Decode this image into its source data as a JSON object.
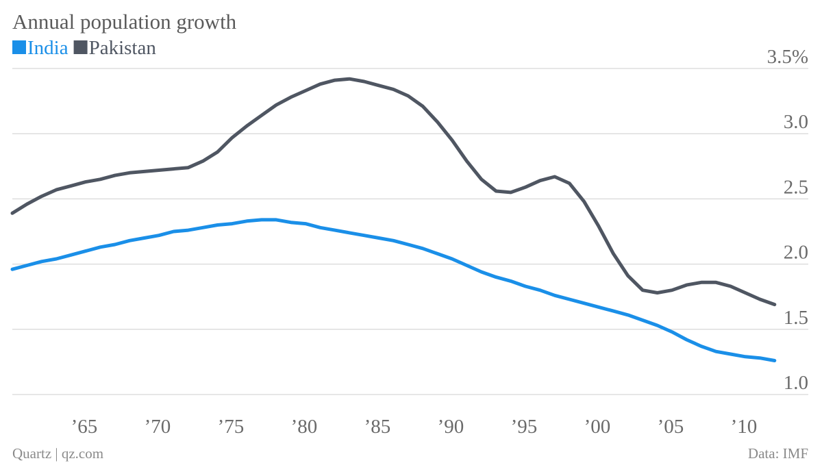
{
  "chart_data": {
    "type": "line",
    "title": "Annual population growth",
    "source": "Data: IMF",
    "credit": "Quartz | qz.com",
    "x": [
      1961,
      1962,
      1963,
      1964,
      1965,
      1966,
      1967,
      1968,
      1969,
      1970,
      1971,
      1972,
      1973,
      1974,
      1975,
      1976,
      1977,
      1978,
      1979,
      1980,
      1981,
      1982,
      1983,
      1984,
      1985,
      1986,
      1987,
      1988,
      1989,
      1990,
      1991,
      1992,
      1993,
      1994,
      1995,
      1996,
      1997,
      1998,
      1999,
      2000,
      2001,
      2002,
      2003,
      2004,
      2005,
      2006,
      2007,
      2008,
      2009,
      2010,
      2011,
      2012,
      2013
    ],
    "series": [
      {
        "name": "India",
        "color": "#1a8fe8",
        "values": [
          1.96,
          1.99,
          2.02,
          2.04,
          2.07,
          2.1,
          2.13,
          2.15,
          2.18,
          2.2,
          2.22,
          2.25,
          2.26,
          2.28,
          2.3,
          2.31,
          2.33,
          2.34,
          2.34,
          2.32,
          2.31,
          2.28,
          2.26,
          2.24,
          2.22,
          2.2,
          2.18,
          2.15,
          2.12,
          2.08,
          2.04,
          1.99,
          1.94,
          1.9,
          1.87,
          1.83,
          1.8,
          1.76,
          1.73,
          1.7,
          1.67,
          1.64,
          1.61,
          1.57,
          1.53,
          1.48,
          1.42,
          1.37,
          1.33,
          1.31,
          1.29,
          1.28,
          1.26
        ]
      },
      {
        "name": "Pakistan",
        "color": "#4f5662",
        "values": [
          2.39,
          2.46,
          2.52,
          2.57,
          2.6,
          2.63,
          2.65,
          2.68,
          2.7,
          2.71,
          2.72,
          2.73,
          2.74,
          2.79,
          2.86,
          2.97,
          3.06,
          3.14,
          3.22,
          3.28,
          3.33,
          3.38,
          3.41,
          3.42,
          3.4,
          3.37,
          3.34,
          3.29,
          3.21,
          3.09,
          2.95,
          2.79,
          2.65,
          2.56,
          2.55,
          2.59,
          2.64,
          2.67,
          2.62,
          2.48,
          2.29,
          2.08,
          1.91,
          1.8,
          1.78,
          1.8,
          1.84,
          1.86,
          1.86,
          1.83,
          1.78,
          1.73,
          1.69
        ]
      }
    ],
    "xlim": [
      1961,
      2015.3
    ],
    "xticks": [
      {
        "value": 1965,
        "label": "’65"
      },
      {
        "value": 1970,
        "label": "’70"
      },
      {
        "value": 1975,
        "label": "’75"
      },
      {
        "value": 1980,
        "label": "’80"
      },
      {
        "value": 1985,
        "label": "’85"
      },
      {
        "value": 1990,
        "label": "’90"
      },
      {
        "value": 1995,
        "label": "’95"
      },
      {
        "value": 2000,
        "label": "’00"
      },
      {
        "value": 2005,
        "label": "’05"
      },
      {
        "value": 2010,
        "label": "’10"
      }
    ],
    "ylim": [
      1.0,
      3.5
    ],
    "yticks": [
      {
        "value": 1.0,
        "label": "1.0"
      },
      1.5,
      {
        "value": 2.0,
        "label": "2.0"
      },
      2.5,
      {
        "value": 3.0,
        "label": "3.0"
      },
      {
        "value": 3.5,
        "label": "3.5%"
      }
    ],
    "grid": true
  }
}
